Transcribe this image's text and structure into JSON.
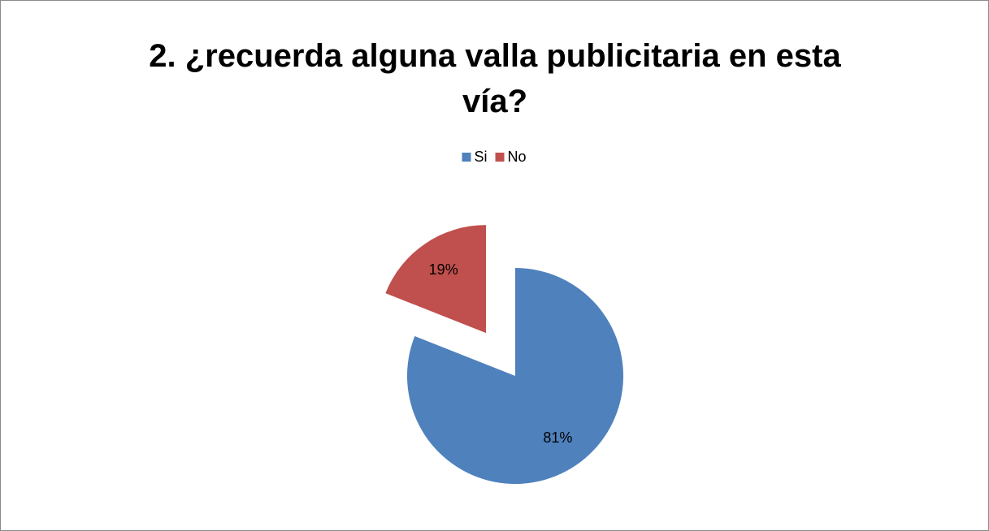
{
  "chart_data": {
    "type": "pie",
    "title": "2. ¿recuerda alguna valla publicitaria en esta vía?",
    "categories": [
      "Si",
      "No"
    ],
    "values": [
      81,
      19
    ],
    "value_labels": [
      "81%",
      "19%"
    ],
    "colors": [
      "#4f81bd",
      "#c0504d"
    ],
    "legend": "top"
  }
}
